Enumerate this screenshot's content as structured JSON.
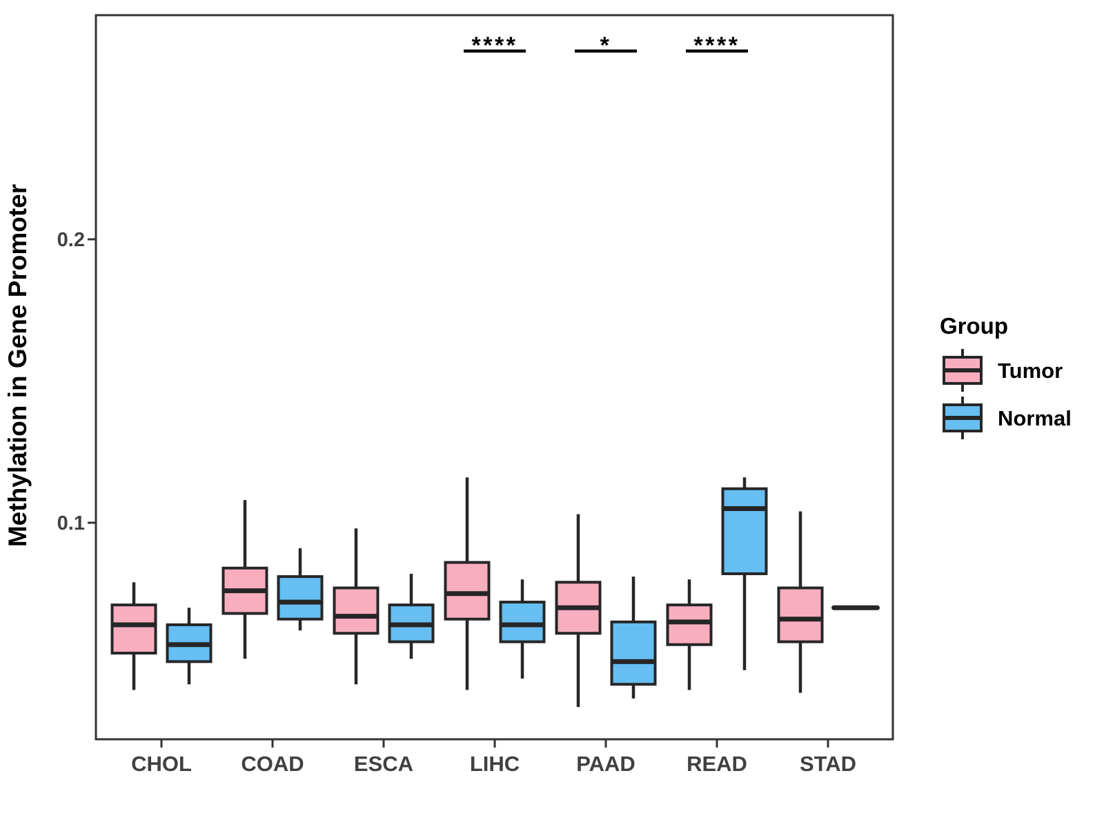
{
  "legend": {
    "title": "Group",
    "items": [
      {
        "label": "Tumor",
        "color": "#F9AEC0"
      },
      {
        "label": "Normal",
        "color": "#66BEF2"
      }
    ]
  },
  "colors": {
    "tumor_fill": "#F9AEC0",
    "normal_fill": "#66BEF2",
    "box_stroke": "#262626",
    "panel_border": "#333333",
    "axis_text": "#404040",
    "background": "#ffffff"
  },
  "chart_data": {
    "type": "boxplot",
    "title": "",
    "xlabel": "",
    "ylabel": "Methylation in Gene Promoter",
    "categories": [
      "CHOL",
      "COAD",
      "ESCA",
      "LIHC",
      "PAAD",
      "READ",
      "STAD"
    ],
    "y_axis": {
      "ticks": [
        0.1,
        0.2
      ],
      "tick_labels": [
        "0.1",
        "0.2"
      ],
      "range": [
        0.024,
        0.279
      ],
      "grid": false
    },
    "legend_position": "right",
    "series": [
      {
        "name": "Tumor",
        "color": "#F9AEC0",
        "boxes": [
          {
            "category": "CHOL",
            "min": 0.041,
            "q1": 0.054,
            "median": 0.064,
            "q3": 0.071,
            "max": 0.079
          },
          {
            "category": "COAD",
            "min": 0.052,
            "q1": 0.068,
            "median": 0.076,
            "q3": 0.084,
            "max": 0.108
          },
          {
            "category": "ESCA",
            "min": 0.043,
            "q1": 0.061,
            "median": 0.067,
            "q3": 0.077,
            "max": 0.098
          },
          {
            "category": "LIHC",
            "min": 0.041,
            "q1": 0.066,
            "median": 0.075,
            "q3": 0.086,
            "max": 0.116
          },
          {
            "category": "PAAD",
            "min": 0.035,
            "q1": 0.061,
            "median": 0.07,
            "q3": 0.079,
            "max": 0.103
          },
          {
            "category": "READ",
            "min": 0.041,
            "q1": 0.057,
            "median": 0.065,
            "q3": 0.071,
            "max": 0.08
          },
          {
            "category": "STAD",
            "min": 0.04,
            "q1": 0.058,
            "median": 0.066,
            "q3": 0.077,
            "max": 0.104
          }
        ]
      },
      {
        "name": "Normal",
        "color": "#66BEF2",
        "boxes": [
          {
            "category": "CHOL",
            "min": 0.043,
            "q1": 0.051,
            "median": 0.057,
            "q3": 0.064,
            "max": 0.07
          },
          {
            "category": "COAD",
            "min": 0.062,
            "q1": 0.066,
            "median": 0.072,
            "q3": 0.081,
            "max": 0.091
          },
          {
            "category": "ESCA",
            "min": 0.052,
            "q1": 0.058,
            "median": 0.064,
            "q3": 0.071,
            "max": 0.082
          },
          {
            "category": "LIHC",
            "min": 0.045,
            "q1": 0.058,
            "median": 0.064,
            "q3": 0.072,
            "max": 0.08
          },
          {
            "category": "PAAD",
            "min": 0.038,
            "q1": 0.043,
            "median": 0.051,
            "q3": 0.065,
            "max": 0.081
          },
          {
            "category": "READ",
            "min": 0.048,
            "q1": 0.082,
            "median": 0.105,
            "q3": 0.112,
            "max": 0.116
          },
          {
            "category": "STAD",
            "min": 0.07,
            "q1": 0.07,
            "median": 0.07,
            "q3": 0.07,
            "max": 0.07
          }
        ]
      }
    ],
    "significance": [
      {
        "category": "LIHC",
        "label": "****"
      },
      {
        "category": "PAAD",
        "label": "*"
      },
      {
        "category": "READ",
        "label": "****"
      }
    ]
  }
}
